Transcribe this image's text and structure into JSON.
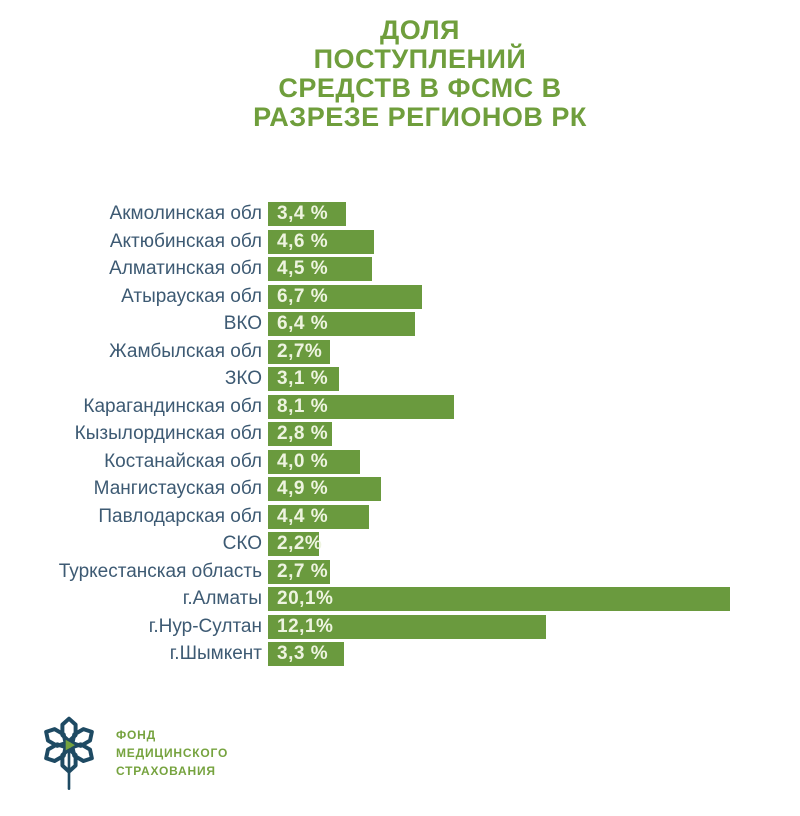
{
  "title": {
    "lines": [
      "ДОЛЯ",
      "ПОСТУПЛЕНИЙ",
      "СРЕДСТВ В ФСМС В",
      "РАЗРЕЗЕ РЕГИОНОВ РК"
    ]
  },
  "chart_data": {
    "type": "bar",
    "orientation": "horizontal",
    "title": "ДОЛЯ ПОСТУПЛЕНИЙ СРЕДСТВ В ФСМС В РАЗРЕЗЕ РЕГИОНОВ РК",
    "xlabel": "",
    "ylabel": "",
    "xlim": [
      0,
      20.1
    ],
    "grid": false,
    "legend": false,
    "value_unit": "%",
    "categories": [
      "Акмолинская обл",
      "Актюбинская обл",
      "Алматинская обл",
      "Атырауская обл",
      "ВКО",
      "Жамбылская обл",
      "ЗКО",
      "Карагандинская обл",
      "Кызылординская обл",
      "Костанайская обл",
      "Мангистауская обл",
      "Павлодарская обл",
      "СКО",
      "Туркестанская область",
      "г.Алматы",
      "г.Нур-Султан",
      "г.Шымкент"
    ],
    "values": [
      3.4,
      4.6,
      4.5,
      6.7,
      6.4,
      2.7,
      3.1,
      8.1,
      2.8,
      4.0,
      4.9,
      4.4,
      2.2,
      2.7,
      20.1,
      12.1,
      3.3
    ],
    "value_labels": [
      "3,4 %",
      "4,6 %",
      "4,5 %",
      "6,7 %",
      "6,4 %",
      "2,7%",
      "3,1 %",
      "8,1 %",
      "2,8 %",
      "4,0 %",
      "4,9 %",
      "4,4 %",
      "2,2%",
      "2,7 %",
      "20,1%",
      "12,1%",
      "3,3 %"
    ]
  },
  "logo": {
    "lines": [
      "ФОНД",
      "МЕДИЦИНСКОГО",
      "СТРАХОВАНИЯ"
    ],
    "mark": "fsms-flower-icon"
  },
  "colors": {
    "bar": "#6a9a3e",
    "title": "#6f9e3c",
    "label": "#3d5a73",
    "value_text": "#eef4e0",
    "logo_mark": "#1e4a63",
    "logo_accent": "#76a33f",
    "logo_text": "#76a33f",
    "bg": "#ffffff"
  }
}
